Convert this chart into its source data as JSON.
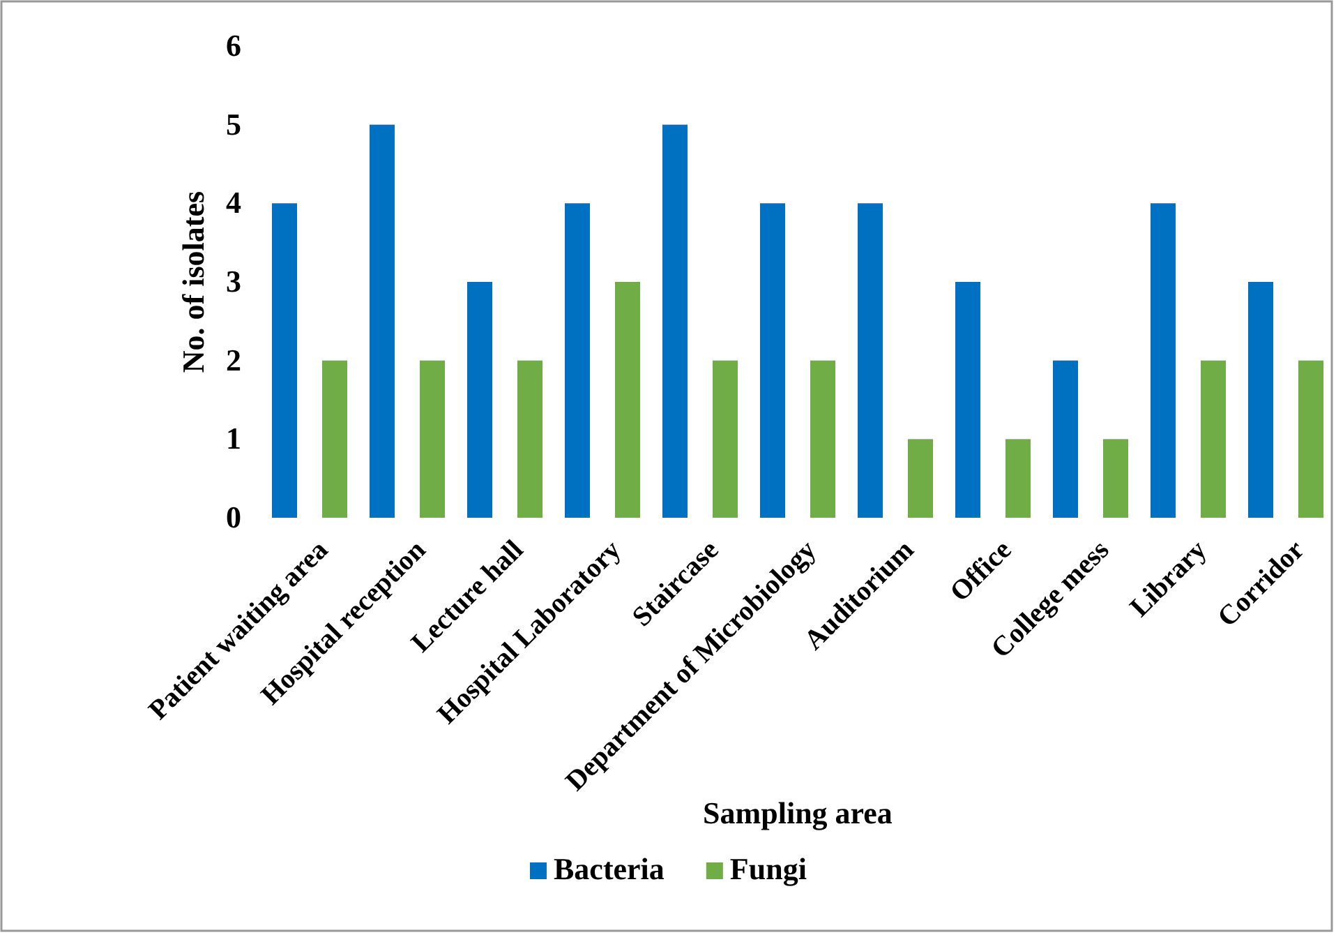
{
  "chart_data": {
    "type": "bar",
    "xlabel": "Sampling area",
    "ylabel": "No. of isolates",
    "categories": [
      "Patient waiting area",
      "Hospital reception",
      "Lecture hall",
      "Hospital Laboratory",
      "Staircase",
      "Department of Microbiology",
      "Auditorium",
      "Office",
      "College mess",
      "Library",
      "Corridor"
    ],
    "series": [
      {
        "name": "Bacteria",
        "color": "#0070c0",
        "values": [
          4,
          5,
          3,
          4,
          5,
          4,
          4,
          3,
          2,
          4,
          3
        ]
      },
      {
        "name": "Fungi",
        "color": "#70ad47",
        "values": [
          2,
          2,
          2,
          3,
          2,
          2,
          1,
          1,
          1,
          2,
          2
        ]
      }
    ],
    "ylim": [
      0,
      6
    ],
    "yticks": [
      0,
      1,
      2,
      3,
      4,
      5,
      6
    ],
    "grid": false,
    "legend": "bottom"
  }
}
